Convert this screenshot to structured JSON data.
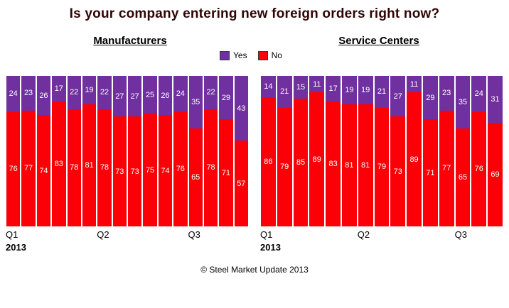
{
  "title": "Is your company entering new foreign orders right now?",
  "legend": {
    "yes_label": "Yes",
    "no_label": "No"
  },
  "colors": {
    "yes": "#7030A0",
    "no": "#FB0006",
    "title": "#2E0505"
  },
  "footer": "© Steel Market Update 2013",
  "chart_data": [
    {
      "type": "bar",
      "stacked": true,
      "title": "Manufacturers",
      "ylim": [
        0,
        100
      ],
      "grid": false,
      "legend_position": "top-center",
      "series": [
        {
          "name": "Yes",
          "color": "#7030A0",
          "values": [
            24,
            23,
            26,
            17,
            22,
            19,
            22,
            27,
            27,
            25,
            26,
            24,
            35,
            22,
            29,
            43
          ]
        },
        {
          "name": "No",
          "color": "#FB0006",
          "values": [
            76,
            77,
            74,
            83,
            78,
            81,
            78,
            73,
            73,
            75,
            74,
            76,
            65,
            78,
            71,
            57
          ]
        }
      ],
      "x_labels": [
        {
          "label": "Q1",
          "sub": "2013",
          "index": 0
        },
        {
          "label": "Q2",
          "index": 6
        },
        {
          "label": "Q3",
          "index": 12
        }
      ]
    },
    {
      "type": "bar",
      "stacked": true,
      "title": "Service Centers",
      "ylim": [
        0,
        100
      ],
      "grid": false,
      "legend_position": "top-center",
      "series": [
        {
          "name": "Yes",
          "color": "#7030A0",
          "values": [
            14,
            21,
            15,
            11,
            17,
            19,
            19,
            21,
            27,
            11,
            29,
            23,
            35,
            24,
            31
          ]
        },
        {
          "name": "No",
          "color": "#FB0006",
          "values": [
            86,
            79,
            85,
            89,
            83,
            81,
            81,
            79,
            73,
            89,
            71,
            77,
            65,
            76,
            69
          ]
        }
      ],
      "x_labels": [
        {
          "label": "Q1",
          "sub": "2013",
          "index": 0
        },
        {
          "label": "Q2",
          "index": 6
        },
        {
          "label": "Q3",
          "index": 12
        }
      ]
    }
  ]
}
